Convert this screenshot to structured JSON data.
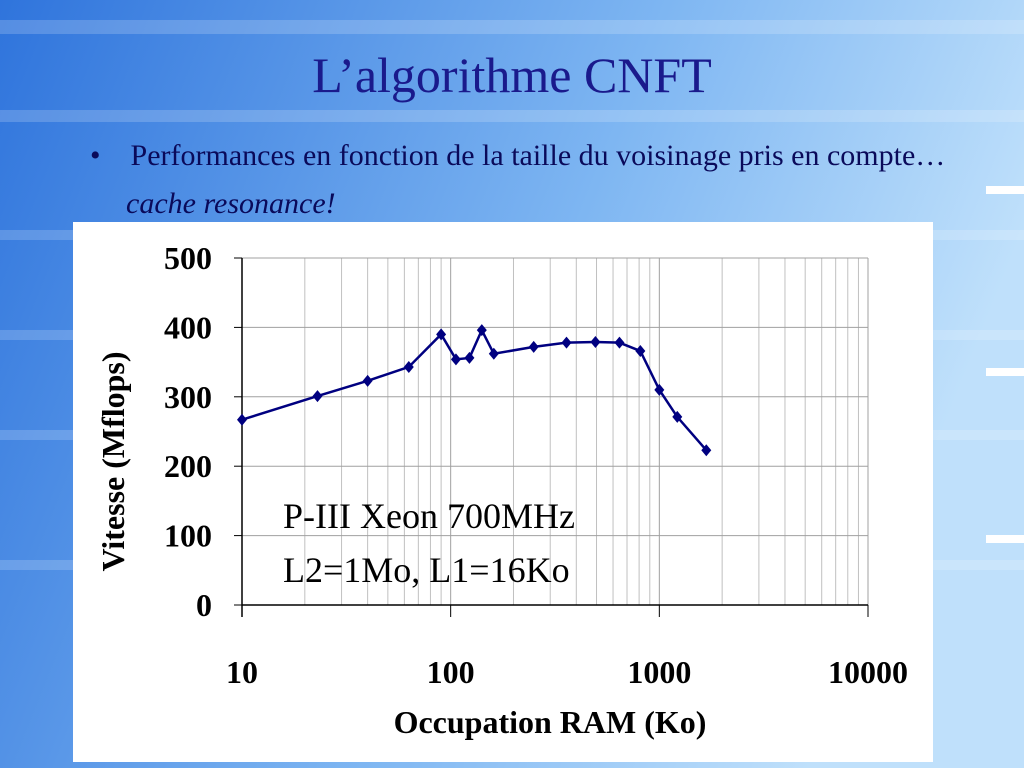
{
  "slide": {
    "title": "L’algorithme CNFT",
    "bullet": "Performances en fonction de la taille du voisinage pris en compte…",
    "emphasis": "cache resonance!"
  },
  "chart_data": {
    "type": "line",
    "x_label": "Occupation RAM (Ko)",
    "y_label": "Vitesse (Mflops)",
    "x": [
      10,
      23,
      40,
      63,
      90,
      106,
      123,
      141,
      161,
      250,
      359,
      494,
      644,
      811,
      1000,
      1219,
      1679
    ],
    "series": [
      {
        "name": "P-III Xeon 700MHz",
        "color": "#000080",
        "values": [
          267,
          301,
          323,
          343,
          390,
          354,
          356,
          396,
          362,
          372,
          378,
          379,
          378,
          366,
          310,
          271,
          223
        ]
      }
    ],
    "xlim": [
      10,
      10000
    ],
    "xticks": [
      10,
      100,
      1000,
      10000
    ],
    "xlog": true,
    "ylim": [
      0,
      500
    ],
    "yticks": [
      0,
      100,
      200,
      300,
      400,
      500
    ],
    "grid": true,
    "annotations": [
      "P-III Xeon 700MHz",
      "L2=1Mo, L1=16Ko"
    ]
  }
}
